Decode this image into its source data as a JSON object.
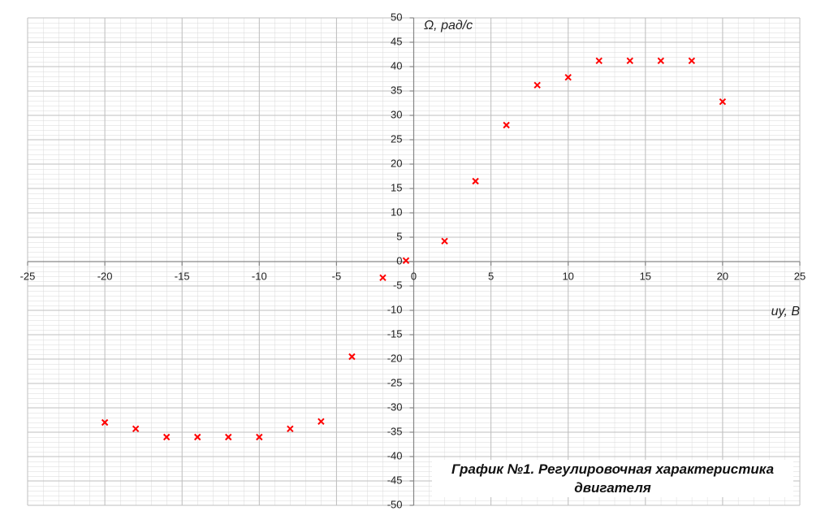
{
  "chart_data": {
    "type": "scatter",
    "title": "График №1. Регулировочная характеристика двигателя",
    "x_label": "uу, В",
    "y_label": "Ω,  рад/с",
    "series": [
      {
        "name": "Ω",
        "color": "#ff0000",
        "x": [
          -20,
          -18,
          -16,
          -14,
          -12,
          -10,
          -8,
          -6,
          -4,
          -2,
          -0.5,
          2,
          4,
          6,
          8,
          10,
          12,
          14,
          16,
          18,
          20
        ],
        "values": [
          -33,
          -34.3,
          -36,
          -36,
          -36,
          -36,
          -34.3,
          -32.8,
          -19.5,
          -3.3,
          0.2,
          4.2,
          16.5,
          28,
          36.2,
          37.8,
          41.2,
          41.2,
          41.2,
          41.2,
          32.8
        ]
      }
    ],
    "xlim": [
      -25,
      25
    ],
    "xticks": [
      -25,
      -20,
      -15,
      -10,
      -5,
      0,
      5,
      10,
      15,
      20,
      25
    ],
    "ylim": [
      -50,
      50
    ],
    "yticks": [
      -50,
      -45,
      -40,
      -35,
      -30,
      -25,
      -20,
      -15,
      -10,
      -5,
      0,
      5,
      10,
      15,
      20,
      25,
      30,
      35,
      40,
      45,
      50
    ],
    "grid": true
  }
}
